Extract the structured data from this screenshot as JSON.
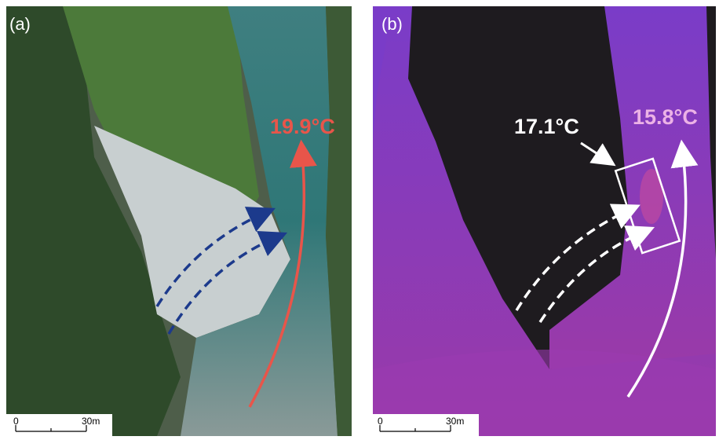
{
  "panels": [
    {
      "label": "(a)",
      "annotations": [
        "19.9°C"
      ],
      "scale_bar": {
        "start": "0",
        "end": "30m"
      }
    },
    {
      "label": "(b)",
      "annotations": [
        "17.1°C",
        "15.8°C"
      ],
      "scale_bar": {
        "start": "0",
        "end": "30m"
      }
    }
  ]
}
